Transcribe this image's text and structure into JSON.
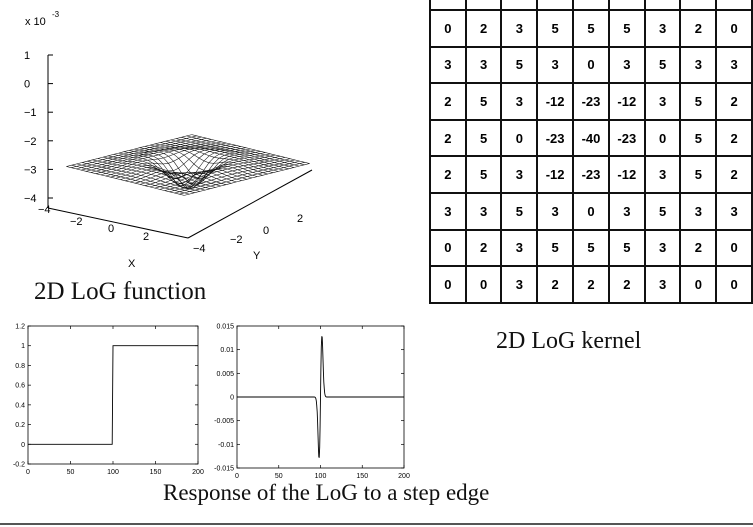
{
  "log3d": {
    "exponent_label": "x 10",
    "exponent_power": "-3",
    "z_ticks": [
      "1",
      "0",
      "−1",
      "−2",
      "−3",
      "−4"
    ],
    "x_ticks": [
      "−4",
      "−2",
      "0",
      "2"
    ],
    "y_ticks": [
      "−4",
      "−2",
      "0",
      "2"
    ],
    "x_label": "X",
    "y_label": "Y",
    "caption": "2D LoG function"
  },
  "kernel": {
    "caption": "2D LoG kernel",
    "rows": [
      [
        0,
        2,
        3,
        5,
        5,
        5,
        3,
        2,
        0
      ],
      [
        3,
        3,
        5,
        3,
        0,
        3,
        5,
        3,
        3
      ],
      [
        2,
        5,
        3,
        -12,
        -23,
        -12,
        3,
        5,
        2
      ],
      [
        2,
        5,
        0,
        -23,
        -40,
        -23,
        0,
        5,
        2
      ],
      [
        2,
        5,
        3,
        -12,
        -23,
        -12,
        3,
        5,
        2
      ],
      [
        3,
        3,
        5,
        3,
        0,
        3,
        5,
        3,
        3
      ],
      [
        0,
        2,
        3,
        5,
        5,
        5,
        3,
        2,
        0
      ],
      [
        0,
        0,
        3,
        2,
        2,
        2,
        3,
        0,
        0
      ]
    ]
  },
  "step_caption": "Response of the LoG to a step edge",
  "chart_data": [
    {
      "type": "line",
      "x": [
        0,
        99,
        100,
        200
      ],
      "series": [
        {
          "values": [
            0,
            0,
            1,
            1
          ]
        }
      ],
      "xlim": [
        0,
        200
      ],
      "ylim": [
        -0.2,
        1.2
      ],
      "xticks": [
        0,
        50,
        100,
        150,
        200
      ],
      "yticks": [
        -0.2,
        0,
        0.2,
        0.4,
        0.6,
        0.8,
        1,
        1.2
      ],
      "ytick_labels": [
        "-0.2",
        "0",
        "0.2",
        "0.4",
        "0.6",
        "0.8",
        "1",
        "1.2"
      ]
    },
    {
      "type": "line",
      "x": [
        0,
        94,
        97,
        99,
        100,
        101,
        103,
        106,
        200
      ],
      "series": [
        {
          "values": [
            0,
            0.0005,
            0.0045,
            0.013,
            0,
            -0.013,
            -0.0045,
            -0.0005,
            0
          ]
        }
      ],
      "xlim": [
        0,
        200
      ],
      "ylim": [
        -0.015,
        0.015
      ],
      "xticks": [
        0,
        50,
        100,
        150,
        200
      ],
      "yticks": [
        -0.015,
        -0.01,
        -0.005,
        0,
        0.005,
        0.01,
        0.015
      ],
      "ytick_labels": [
        "-0.015",
        "-0.01",
        "-0.005",
        "0",
        "0.005",
        "0.01",
        "0.015"
      ]
    }
  ]
}
